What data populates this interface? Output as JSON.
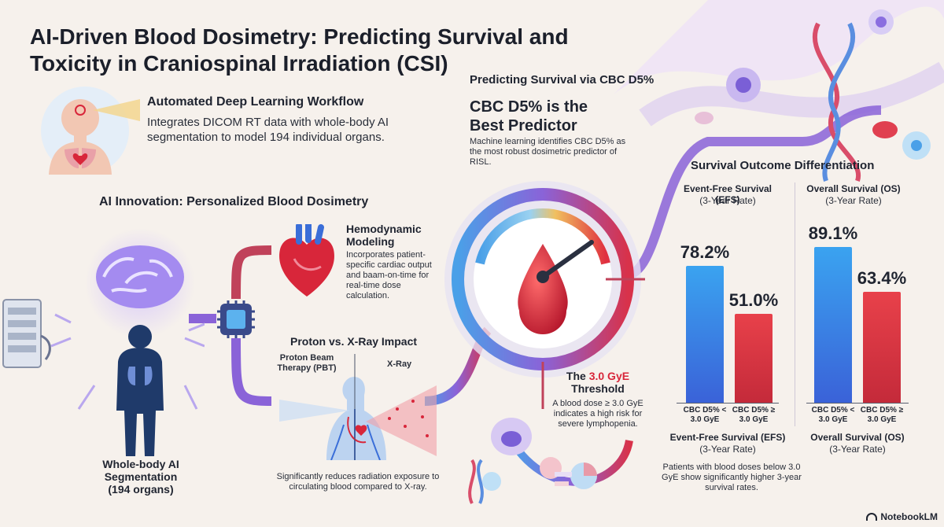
{
  "title": "AI-Driven Blood Dosimetry: Predicting Survival and Toxicity in Craniospinal Irradiation (CSI)",
  "workflow": {
    "heading": "Automated Deep Learning Workflow",
    "body": "Integrates DICOM RT data with whole-body AI segmentation to model 194 individual organs."
  },
  "innovation": {
    "heading": "AI Innovation: Personalized Blood Dosimetry"
  },
  "hemodynamic": {
    "heading": "Hemodynamic Modeling",
    "body": "Incorporates patient-specific cardiac output and baam-on-time for real-time dose calculation."
  },
  "proton": {
    "heading": "Proton vs. X-Ray Impact",
    "pbt_label": "Proton Beam Therapy (PBT)",
    "xray_label": "X-Ray",
    "caption": "Significantly reduces radiation exposure to circulating blood compared to X-ray."
  },
  "segmentation": {
    "label": "Whole-body AI Segmentation (194 organs)"
  },
  "predicting": {
    "heading": "Predicting Survival via CBC D5%",
    "big": "CBC D5% is the Best Predictor",
    "body": "Machine learning identifies CBC D5% as the most robust dosimetric predictor of RISL."
  },
  "threshold": {
    "prefix": "The",
    "value": "3.0 GyE",
    "suffix": "Threshold",
    "body": "A blood dose ≥ 3.0 GyE indicates a high risk for severe lymphopenia."
  },
  "outcome": {
    "heading": "Survival Outcome Differentiation",
    "efs_title": "Event-Free Survival (EFS)",
    "os_title": "Overall Survival (OS)",
    "rate": "(3-Year Rate)",
    "bottom_efs": "Event-Free Survival (EFS)",
    "bottom_os": "Overall Survival (OS)",
    "note": "Patients with blood doses below 3.0 GyE show significantly higher 3-year survival rates."
  },
  "chart_data": {
    "type": "bar",
    "categories": [
      "CBC D5% < 3.0 GyE",
      "CBC D5% ≥ 3.0 GyE"
    ],
    "series": [
      {
        "name": "Event-Free Survival (EFS)",
        "values": [
          78.2,
          51.0
        ],
        "labels": [
          "78.2%",
          "51.0%"
        ]
      },
      {
        "name": "Overall Survival (OS)",
        "values": [
          89.1,
          63.4
        ],
        "labels": [
          "89.1%",
          "63.4%"
        ]
      }
    ],
    "colors": {
      "low": "#3a7ee8",
      "high": "#d93444"
    }
  },
  "colors": {
    "accent_red": "#d8263a",
    "accent_purple": "#7a5fd6",
    "accent_blue": "#3a8ee8"
  },
  "brand": "NotebookLM"
}
